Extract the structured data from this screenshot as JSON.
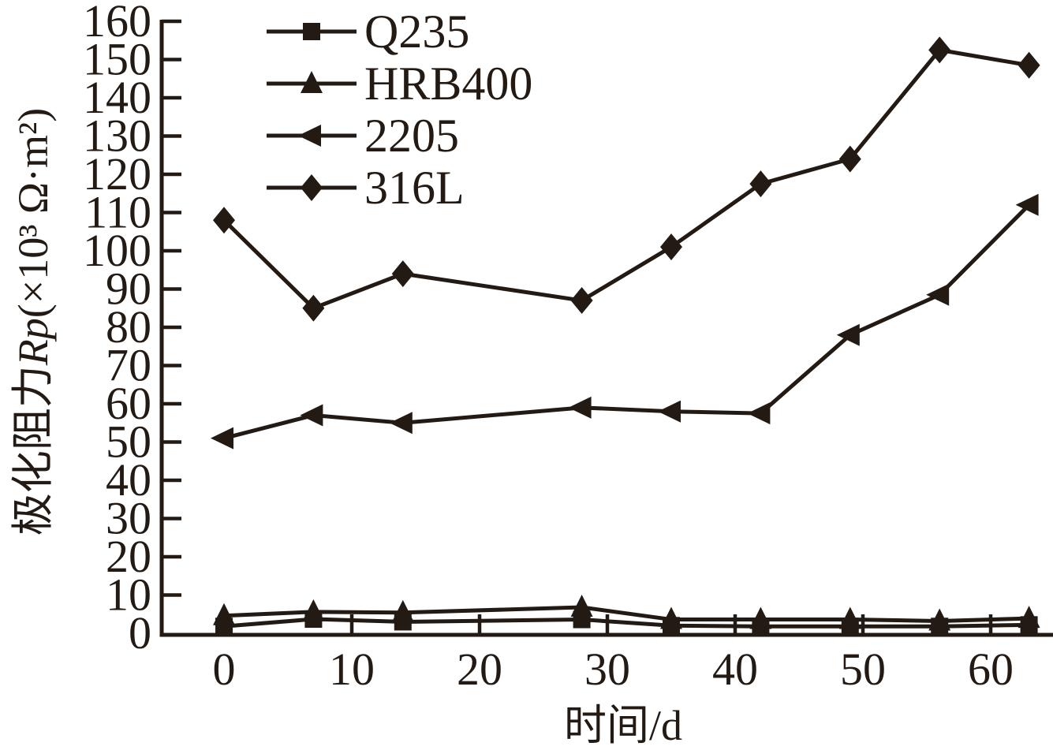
{
  "colors": {
    "ink": "#231a14",
    "background": "#ffffff"
  },
  "chart_data": {
    "type": "line",
    "title": "",
    "xlabel": "时间/d",
    "ylabel": "极化阻力Rp(×10³ Ω·m²)",
    "ylabel_cn": "极化阻力",
    "ylabel_symbol": "Rp",
    "ylabel_units": "(×10³ Ω·m²)",
    "x": [
      0,
      7,
      14,
      28,
      35,
      42,
      49,
      56,
      63
    ],
    "series": [
      {
        "name": "Q235",
        "marker": "square",
        "values": [
          1.8,
          3.7,
          3.0,
          3.6,
          2.0,
          1.8,
          1.8,
          1.8,
          2.2
        ]
      },
      {
        "name": "HRB400",
        "marker": "triangle-up",
        "values": [
          4.6,
          5.6,
          5.4,
          6.8,
          3.6,
          3.6,
          3.6,
          3.2,
          3.9
        ]
      },
      {
        "name": "2205",
        "marker": "triangle-left",
        "values": [
          51,
          57,
          55,
          59,
          58,
          57.5,
          78,
          88.5,
          112
        ]
      },
      {
        "name": "316L",
        "marker": "diamond",
        "values": [
          108,
          85,
          94,
          87,
          101,
          117.5,
          124,
          152.5,
          148.5
        ]
      }
    ],
    "xticks": [
      0,
      10,
      20,
      30,
      40,
      50,
      60
    ],
    "yticks": [
      0,
      10,
      20,
      30,
      40,
      50,
      60,
      70,
      80,
      90,
      100,
      110,
      120,
      130,
      140,
      150,
      160
    ],
    "xlim": [
      -4.9,
      64.9
    ],
    "ylim": [
      0,
      160
    ],
    "grid": false,
    "legend_position": "upper-left-inside"
  }
}
